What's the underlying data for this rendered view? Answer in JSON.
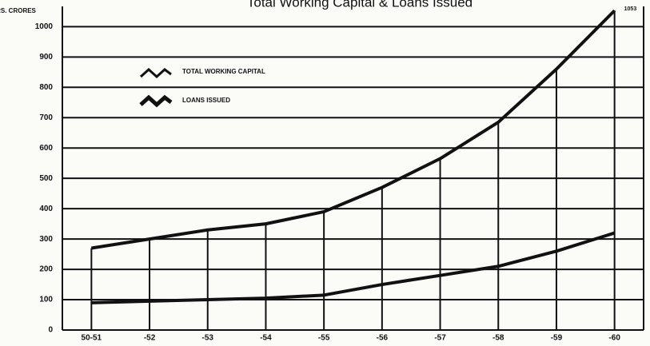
{
  "chart_data": {
    "type": "line",
    "title": "Total Working Capital & Loans Issued",
    "y_label": "RS. CRORES",
    "categories": [
      "50-51",
      "-52",
      "-53",
      "-54",
      "-55",
      "-56",
      "-57",
      "-58",
      "-59",
      "-60"
    ],
    "series": [
      {
        "name": "TOTAL WORKING CAPITAL",
        "color": "#111111",
        "values": [
          270,
          300,
          330,
          350,
          390,
          470,
          565,
          685,
          860,
          1053
        ]
      },
      {
        "name": "LOANS ISSUED",
        "color": "#111111",
        "values": [
          90,
          95,
          100,
          105,
          115,
          150,
          180,
          210,
          260,
          320
        ]
      }
    ],
    "annotations": [
      "1053"
    ],
    "ylim": [
      0,
      1080
    ],
    "yticks": [
      0,
      100,
      200,
      300,
      400,
      500,
      600,
      700,
      800,
      900,
      1000
    ],
    "grid": true
  }
}
